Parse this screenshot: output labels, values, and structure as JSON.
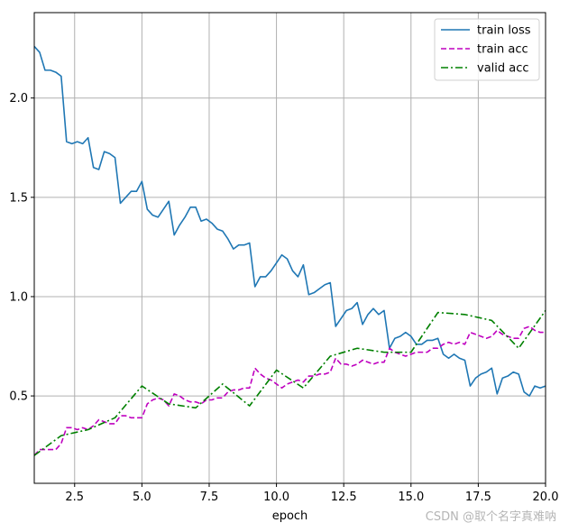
{
  "chart_data": {
    "type": "line",
    "xlabel": "epoch",
    "ylabel": "",
    "xlim": [
      1.0,
      20.0
    ],
    "ylim": [
      0.06,
      2.43
    ],
    "xticks": [
      2.5,
      5.0,
      7.5,
      10.0,
      12.5,
      15.0,
      17.5,
      20.0
    ],
    "xtick_labels": [
      "2.5",
      "5.0",
      "7.5",
      "10.0",
      "12.5",
      "15.0",
      "17.5",
      "20.0"
    ],
    "yticks": [
      0.5,
      1.0,
      1.5,
      2.0
    ],
    "ytick_labels": [
      "0.5",
      "1.0",
      "1.5",
      "2.0"
    ],
    "grid": true,
    "legend_position": "top-right",
    "series": [
      {
        "name": "train loss",
        "color": "#1f77b4",
        "style": "solid",
        "x": [
          1.0,
          1.2,
          1.4,
          1.6,
          1.8,
          2.0,
          2.2,
          2.4,
          2.6,
          2.8,
          3.0,
          3.2,
          3.4,
          3.6,
          3.8,
          4.0,
          4.2,
          4.4,
          4.6,
          4.8,
          5.0,
          5.2,
          5.4,
          5.6,
          5.8,
          6.0,
          6.2,
          6.4,
          6.6,
          6.8,
          7.0,
          7.2,
          7.4,
          7.6,
          7.8,
          8.0,
          8.2,
          8.4,
          8.6,
          8.8,
          9.0,
          9.2,
          9.4,
          9.6,
          9.8,
          10.0,
          10.2,
          10.4,
          10.6,
          10.8,
          11.0,
          11.2,
          11.4,
          11.6,
          11.8,
          12.0,
          12.2,
          12.4,
          12.6,
          12.8,
          13.0,
          13.2,
          13.4,
          13.6,
          13.8,
          14.0,
          14.2,
          14.4,
          14.6,
          14.8,
          15.0,
          15.2,
          15.4,
          15.6,
          15.8,
          16.0,
          16.2,
          16.4,
          16.6,
          16.8,
          17.0,
          17.2,
          17.4,
          17.6,
          17.8,
          18.0,
          18.2,
          18.4,
          18.6,
          18.8,
          19.0,
          19.2,
          19.4,
          19.6,
          19.8,
          20.0
        ],
        "values": [
          2.26,
          2.23,
          2.14,
          2.14,
          2.13,
          2.11,
          1.78,
          1.77,
          1.78,
          1.77,
          1.8,
          1.65,
          1.64,
          1.73,
          1.72,
          1.7,
          1.47,
          1.5,
          1.53,
          1.53,
          1.58,
          1.44,
          1.41,
          1.4,
          1.44,
          1.48,
          1.31,
          1.36,
          1.4,
          1.45,
          1.45,
          1.38,
          1.39,
          1.37,
          1.34,
          1.33,
          1.29,
          1.24,
          1.26,
          1.26,
          1.27,
          1.05,
          1.1,
          1.1,
          1.13,
          1.17,
          1.21,
          1.19,
          1.13,
          1.1,
          1.16,
          1.01,
          1.02,
          1.04,
          1.06,
          1.07,
          0.85,
          0.89,
          0.93,
          0.94,
          0.97,
          0.86,
          0.91,
          0.94,
          0.91,
          0.93,
          0.74,
          0.79,
          0.8,
          0.82,
          0.8,
          0.76,
          0.76,
          0.78,
          0.78,
          0.79,
          0.71,
          0.69,
          0.71,
          0.69,
          0.68,
          0.55,
          0.59,
          0.61,
          0.62,
          0.64,
          0.51,
          0.59,
          0.6,
          0.62,
          0.61,
          0.52,
          0.5,
          0.55,
          0.54,
          0.55
        ]
      },
      {
        "name": "train acc",
        "color": "#bf00bf",
        "style": "dashed",
        "x": [
          1.0,
          1.2,
          1.4,
          1.6,
          1.8,
          2.0,
          2.2,
          2.4,
          2.6,
          2.8,
          3.0,
          3.2,
          3.4,
          3.6,
          3.8,
          4.0,
          4.2,
          4.4,
          4.6,
          4.8,
          5.0,
          5.2,
          5.4,
          5.6,
          5.8,
          6.0,
          6.2,
          6.4,
          6.6,
          6.8,
          7.0,
          7.2,
          7.4,
          7.6,
          7.8,
          8.0,
          8.2,
          8.4,
          8.6,
          8.8,
          9.0,
          9.2,
          9.4,
          9.6,
          9.8,
          10.0,
          10.2,
          10.4,
          10.6,
          10.8,
          11.0,
          11.2,
          11.4,
          11.6,
          11.8,
          12.0,
          12.2,
          12.4,
          12.6,
          12.8,
          13.0,
          13.2,
          13.4,
          13.6,
          13.8,
          14.0,
          14.2,
          14.4,
          14.6,
          14.8,
          15.0,
          15.2,
          15.4,
          15.6,
          15.8,
          16.0,
          16.2,
          16.4,
          16.6,
          16.8,
          17.0,
          17.2,
          17.4,
          17.6,
          17.8,
          18.0,
          18.2,
          18.4,
          18.6,
          18.8,
          19.0,
          19.2,
          19.4,
          19.6,
          19.8,
          20.0
        ],
        "values": [
          0.2,
          0.23,
          0.23,
          0.23,
          0.23,
          0.26,
          0.34,
          0.34,
          0.33,
          0.34,
          0.33,
          0.35,
          0.38,
          0.37,
          0.36,
          0.36,
          0.4,
          0.4,
          0.39,
          0.39,
          0.39,
          0.46,
          0.48,
          0.49,
          0.48,
          0.45,
          0.51,
          0.5,
          0.48,
          0.47,
          0.47,
          0.46,
          0.48,
          0.48,
          0.49,
          0.49,
          0.52,
          0.53,
          0.53,
          0.54,
          0.54,
          0.64,
          0.61,
          0.59,
          0.58,
          0.56,
          0.54,
          0.56,
          0.57,
          0.58,
          0.57,
          0.6,
          0.6,
          0.61,
          0.61,
          0.62,
          0.69,
          0.66,
          0.66,
          0.65,
          0.66,
          0.68,
          0.67,
          0.66,
          0.67,
          0.67,
          0.74,
          0.72,
          0.71,
          0.7,
          0.71,
          0.72,
          0.72,
          0.72,
          0.74,
          0.74,
          0.76,
          0.77,
          0.76,
          0.77,
          0.76,
          0.82,
          0.81,
          0.8,
          0.79,
          0.8,
          0.83,
          0.81,
          0.8,
          0.79,
          0.79,
          0.84,
          0.85,
          0.83,
          0.82,
          0.82
        ]
      },
      {
        "name": "valid acc",
        "color": "#008000",
        "style": "dashdot",
        "x": [
          1.0,
          2.0,
          3.0,
          4.0,
          5.0,
          6.0,
          7.0,
          8.0,
          9.0,
          10.0,
          11.0,
          12.0,
          13.0,
          14.0,
          15.0,
          16.0,
          17.0,
          18.0,
          19.0,
          20.0
        ],
        "values": [
          0.2,
          0.3,
          0.33,
          0.39,
          0.55,
          0.46,
          0.44,
          0.56,
          0.45,
          0.63,
          0.54,
          0.7,
          0.74,
          0.72,
          0.72,
          0.92,
          0.91,
          0.88,
          0.74,
          0.93
        ]
      }
    ]
  },
  "watermark": "CSDN @取个名字真难呐"
}
